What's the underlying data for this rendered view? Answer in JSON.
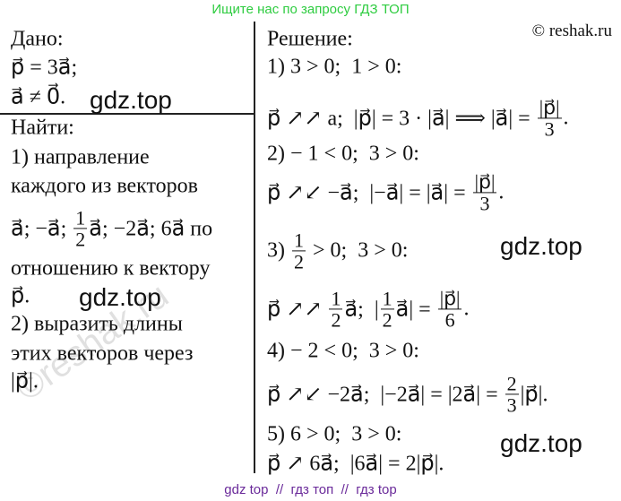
{
  "header": {
    "search_hint": "Ищите нас по запросу ГДЗ ТОП",
    "copyright": "© reshak.ru"
  },
  "given": {
    "title": "Дано:",
    "lines": [
      [
        "p⃗ = 3a⃗;"
      ],
      [
        "a⃗ ≠ 0⃗."
      ]
    ]
  },
  "find": {
    "title": "Найти:",
    "lines": [
      [
        "1) направление"
      ],
      [
        "каждого из векторов"
      ],
      [
        "a⃗; −a⃗; ",
        {
          "num": "1",
          "den": "2"
        },
        "a⃗; −2a⃗; 6a⃗ по"
      ],
      [
        "отношению к вектору"
      ],
      [
        "p⃗."
      ],
      [
        "2) выразить длины"
      ],
      [
        "этих векторов через"
      ],
      [
        "|p⃗|."
      ]
    ]
  },
  "solution": {
    "title": "Решение:",
    "lines": [
      [
        "1) 3 > 0;  1 > 0:"
      ],
      [
        "p⃗ ↗↗ a;  |p⃗| = 3 · |a⃗| ⟹ |a⃗| = ",
        {
          "num": "|p⃗|",
          "den": "3"
        },
        "."
      ],
      [
        "2) − 1 < 0;  3 > 0:"
      ],
      [
        "p⃗ ↗↙ −a⃗;  |−a⃗| = |a⃗| = ",
        {
          "num": "|p⃗|",
          "den": "3"
        },
        "."
      ],
      [
        "3) ",
        {
          "num": "1",
          "den": "2"
        },
        " > 0;  3 > 0:"
      ],
      [
        "p⃗ ↗↗ ",
        {
          "num": "1",
          "den": "2"
        },
        "a⃗;  |",
        {
          "num": "1",
          "den": "2"
        },
        "a⃗| = ",
        {
          "num": "|p⃗|",
          "den": "6"
        },
        "."
      ],
      [
        "4) − 2 < 0;  3 > 0:"
      ],
      [
        "p⃗ ↗↙ −2a⃗;  |−2a⃗| = |2a⃗| = ",
        {
          "num": "2",
          "den": "3"
        },
        "|p⃗|."
      ],
      [
        "5) 6 > 0;  3 > 0:"
      ],
      [
        "p⃗ ↗ 6a⃗;  |6a⃗| = 2|p⃗|."
      ]
    ]
  },
  "watermarks": [
    "gdz.top",
    "gdz.top",
    "gdz.top",
    "gdz.top"
  ],
  "stamp": "©reshak.ru",
  "footer": "gdz top  //  гдз топ  //  гдз top"
}
